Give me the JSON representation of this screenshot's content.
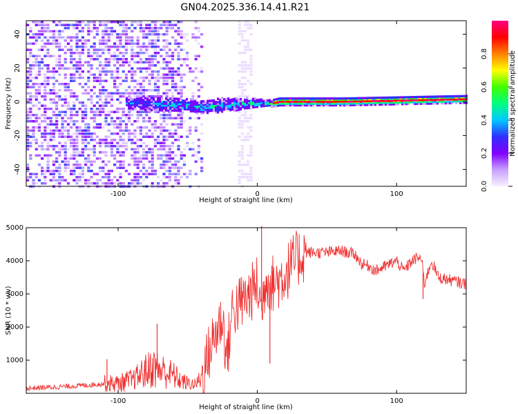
{
  "title": "GN04.2025.336.14.41.R21",
  "chart_data": [
    {
      "type": "heatmap",
      "name": "spectrogram",
      "xlabel": "Height of straight line (km)",
      "ylabel": "Frequency (Hz)",
      "xlim": [
        -166,
        150
      ],
      "ylim": [
        -50,
        48
      ],
      "xticks": [
        -100,
        0,
        100
      ],
      "yticks": [
        -40,
        -20,
        0,
        20,
        40
      ],
      "colorbar": {
        "label": "Normalized spectral amplitude",
        "range": [
          0,
          1
        ],
        "ticks": [
          0.0,
          0.2,
          0.4,
          0.6,
          0.8
        ],
        "colormap": [
          "#f8f0ff",
          "#c8a0ff",
          "#8000ff",
          "#3030ff",
          "#00c8ff",
          "#00ff80",
          "#40ff00",
          "#ffff00",
          "#ff8000",
          "#ff0000",
          "#ff0080"
        ]
      },
      "ridge": {
        "description": "dominant frequency trace",
        "x": [
          -90,
          -60,
          -40,
          -20,
          -10,
          0,
          10,
          15,
          30,
          60,
          90,
          120,
          150
        ],
        "y": [
          -1,
          -2,
          -3,
          -2,
          -1,
          -1,
          -1,
          0,
          0,
          0,
          0.5,
          1,
          1.5
        ]
      },
      "noise_columns_x": [
        -12,
        -8
      ]
    },
    {
      "type": "line",
      "name": "snr",
      "xlabel": "Height of straight line (km)",
      "ylabel": "SNR (10 * v/v)",
      "xlim": [
        -166,
        150
      ],
      "ylim": [
        0,
        5000
      ],
      "xticks": [
        -100,
        0,
        100
      ],
      "yticks": [
        1000,
        2000,
        3000,
        4000,
        5000
      ],
      "color": "#ef2f2f",
      "series": [
        {
          "name": "SNR",
          "x": [
            -166,
            -140,
            -120,
            -108,
            -100,
            -90,
            -82,
            -75,
            -70,
            -65,
            -60,
            -55,
            -50,
            -45,
            -40,
            -35,
            -30,
            -25,
            -22,
            -18,
            -15,
            -10,
            -5,
            0,
            3,
            6,
            10,
            15,
            20,
            25,
            30,
            35,
            40,
            50,
            60,
            70,
            75,
            80,
            85,
            90,
            95,
            100,
            105,
            110,
            115,
            118,
            120,
            125,
            130,
            140,
            150
          ],
          "y": [
            150,
            200,
            250,
            300,
            300,
            400,
            700,
            900,
            800,
            700,
            600,
            400,
            300,
            250,
            500,
            1200,
            1800,
            2300,
            1000,
            2500,
            2600,
            2800,
            3000,
            3300,
            2500,
            3500,
            3300,
            3400,
            3600,
            3900,
            4100,
            4250,
            4250,
            4250,
            4300,
            4200,
            3900,
            3850,
            3700,
            3800,
            3900,
            4000,
            3700,
            3950,
            4100,
            4050,
            3300,
            4000,
            3500,
            3400,
            3300
          ]
        }
      ],
      "spikes": [
        {
          "x": -108,
          "y": 1030
        },
        {
          "x": -72,
          "y": 2100
        },
        {
          "x": 3,
          "y": 5050
        },
        {
          "x": 9,
          "y": 900
        },
        {
          "x": 119,
          "y": 2850
        }
      ]
    }
  ]
}
